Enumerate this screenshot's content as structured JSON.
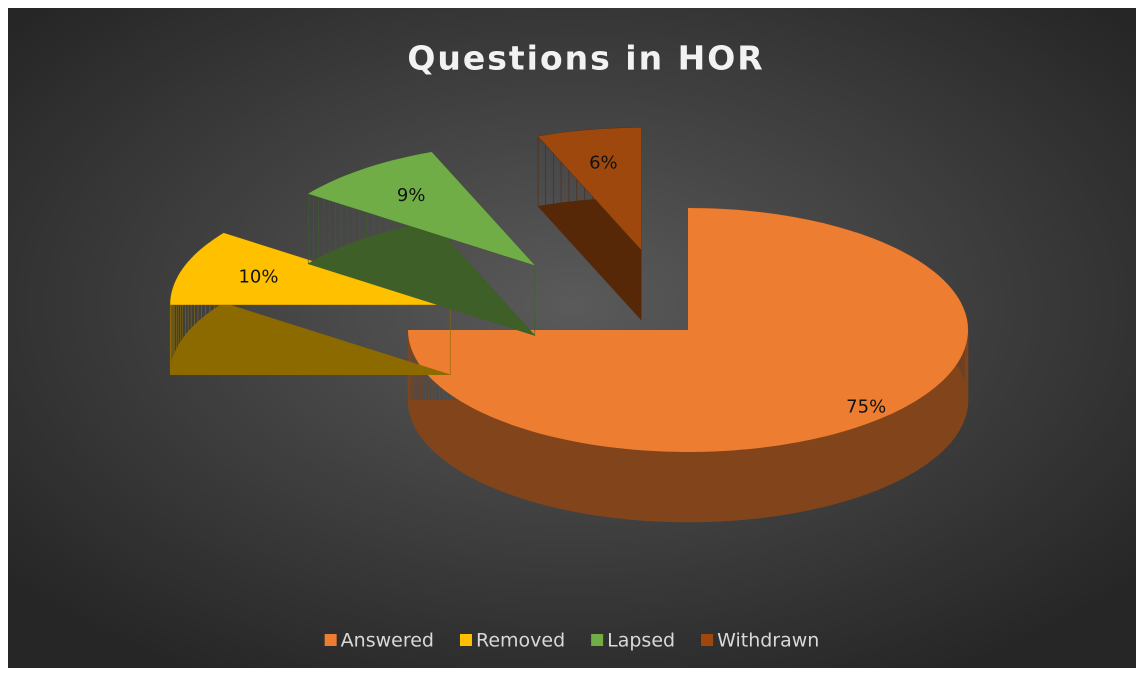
{
  "chart_data": {
    "type": "pie3d",
    "title": "Questions in HOR",
    "categories": [
      "Answered",
      "Removed",
      "Lapsed",
      "Withdrawn"
    ],
    "values": [
      75,
      10,
      9,
      6
    ],
    "value_labels": [
      "75%",
      "10%",
      "9%",
      "6%"
    ],
    "colors": [
      "#ED7D31",
      "#FFC000",
      "#70AD47",
      "#9E480E"
    ],
    "legend": "bottom"
  }
}
